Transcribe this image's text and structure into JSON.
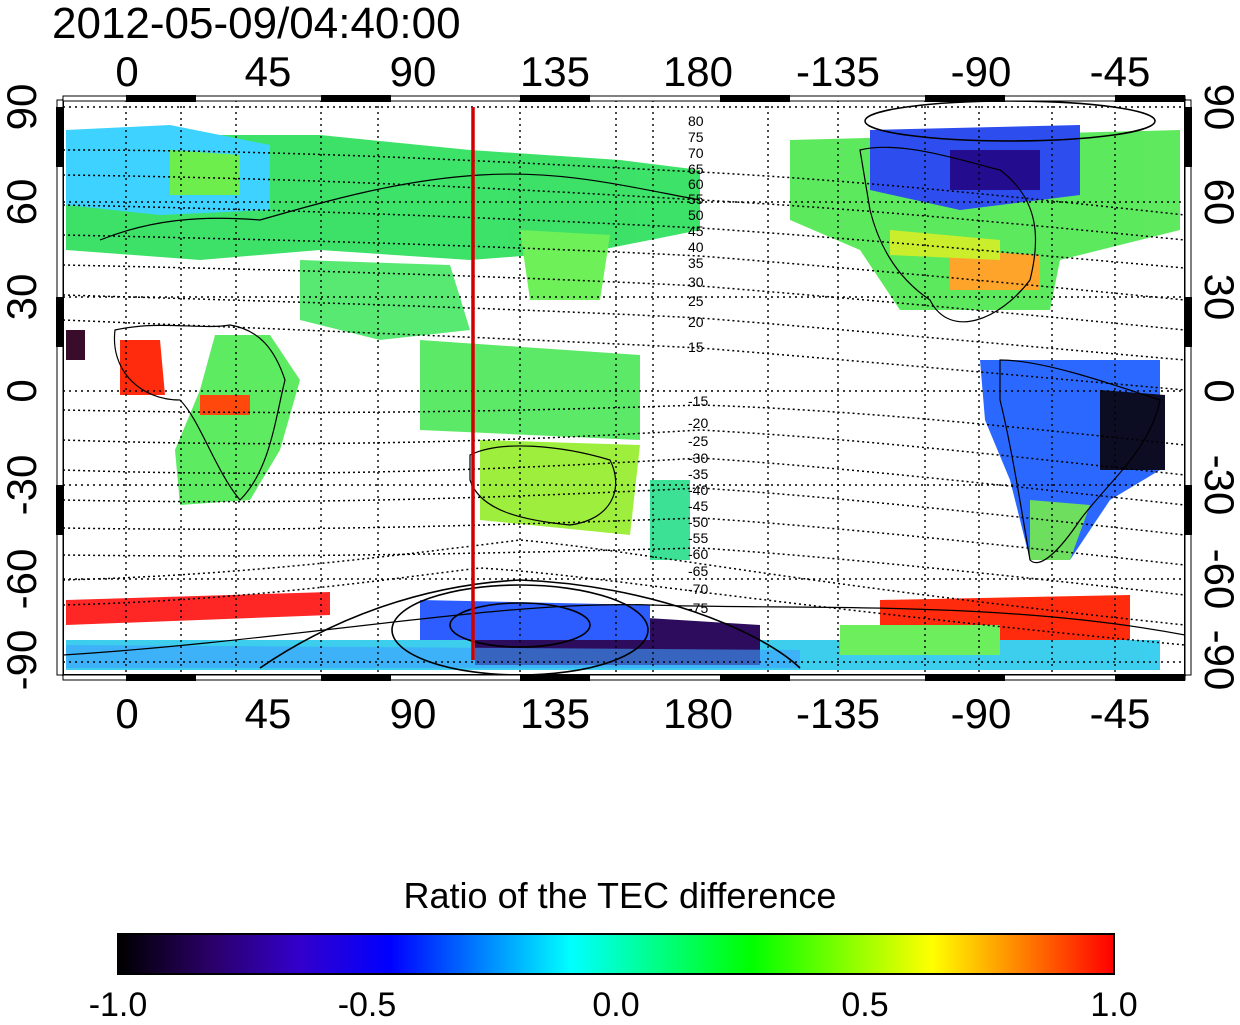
{
  "timestamp": "2012-05-09/04:40:00",
  "map": {
    "top_lon_labels": [
      "0",
      "45",
      "90",
      "135",
      "180",
      "-135",
      "-90",
      "-45"
    ],
    "bottom_lon_labels": [
      "0",
      "45",
      "90",
      "135",
      "180",
      "-135",
      "-90",
      "-45"
    ],
    "left_lat_labels": [
      "90",
      "60",
      "30",
      "0",
      "-30",
      "-60",
      "-90"
    ],
    "right_lat_labels": [
      "90",
      "60",
      "30",
      "0",
      "-30",
      "-60",
      "-90"
    ],
    "contour_labels_north": [
      "80",
      "75",
      "70",
      "65",
      "60",
      "55",
      "50",
      "45",
      "40",
      "35",
      "30",
      "25",
      "20",
      "15"
    ],
    "contour_labels_south": [
      "-15",
      "-20",
      "-25",
      "-30",
      "-35",
      "-40",
      "-45",
      "-50",
      "-55",
      "-60",
      "-65",
      "-70",
      "-75"
    ],
    "marker_color": "#d00000"
  },
  "colorbar": {
    "title": "Ratio of the TEC difference",
    "ticks": [
      "-1.0",
      "-0.5",
      "0.0",
      "0.5",
      "1.0"
    ],
    "colors": [
      "#000000",
      "#2a0066",
      "#3300cc",
      "#0000ff",
      "#0080ff",
      "#00ffff",
      "#00ff80",
      "#00ff00",
      "#80ff00",
      "#ffff00",
      "#ff8000",
      "#ff0000"
    ]
  }
}
